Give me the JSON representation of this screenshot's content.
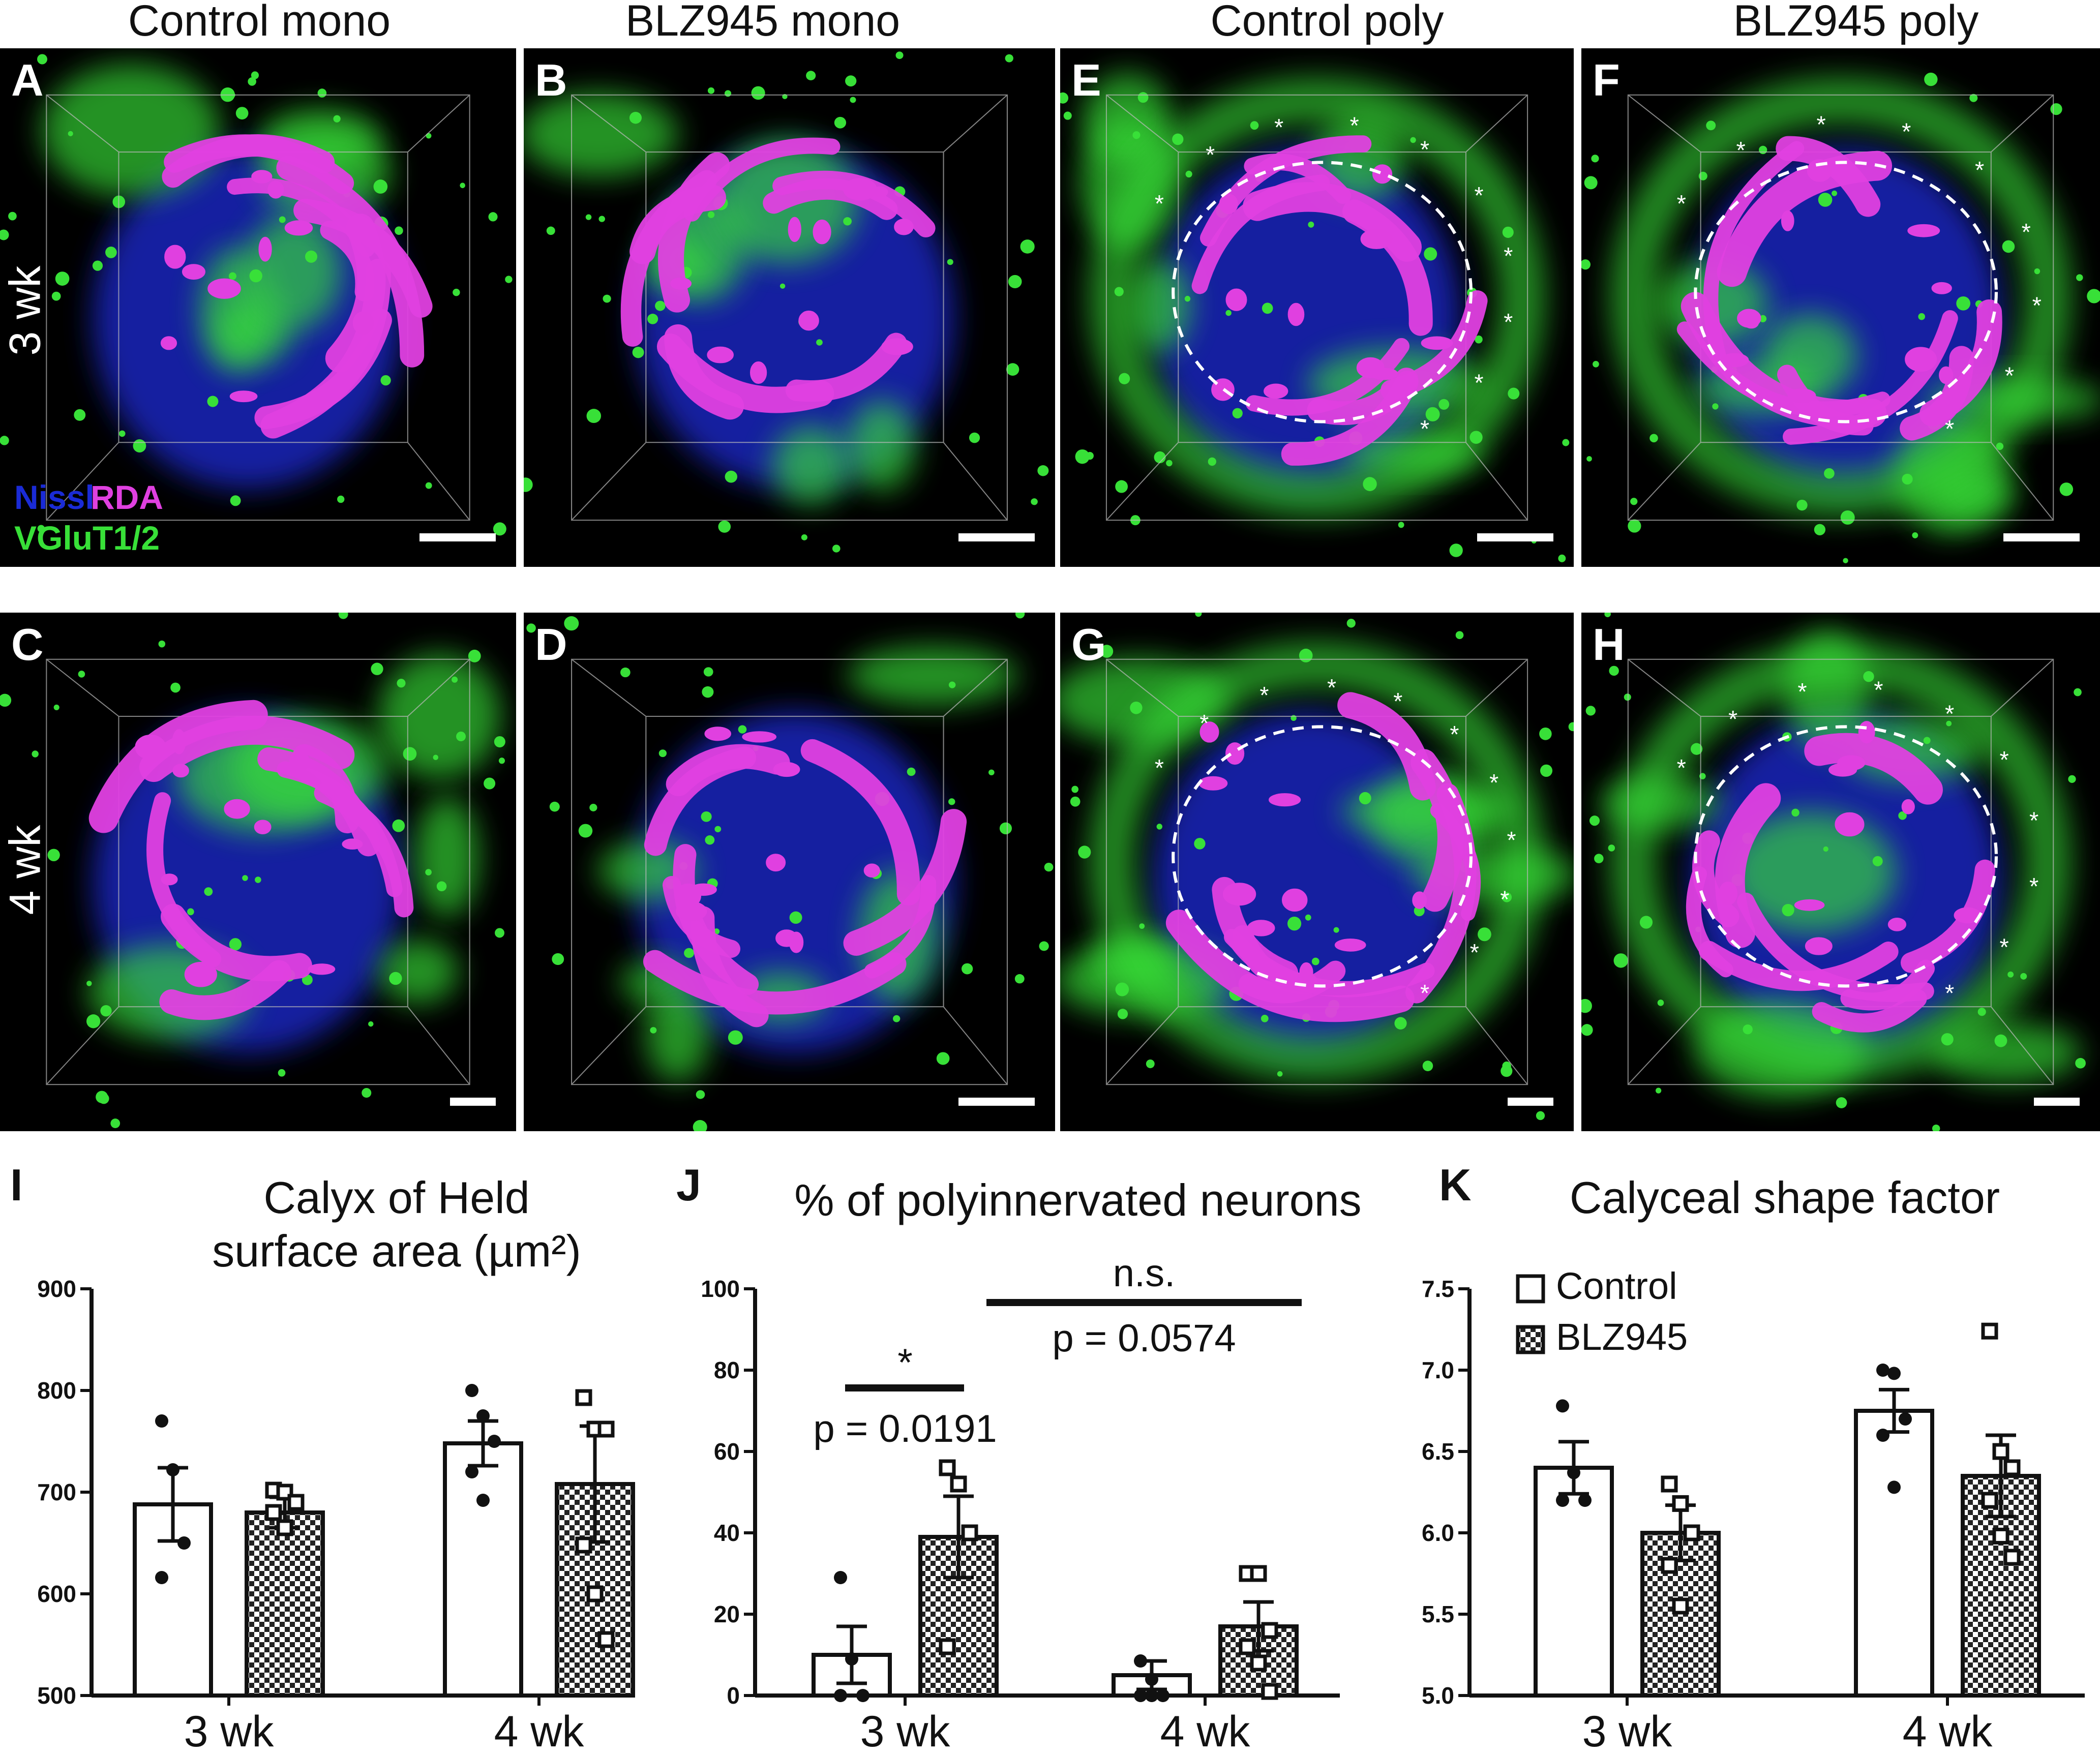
{
  "column_titles": [
    "Control mono",
    "BLZ945 mono",
    "Control poly",
    "BLZ945 poly"
  ],
  "row_labels": [
    "3 wk",
    "4 wk"
  ],
  "panels": [
    {
      "letter": "A",
      "asterisks": 0,
      "dashed": false
    },
    {
      "letter": "B",
      "asterisks": 0,
      "dashed": false
    },
    {
      "letter": "E",
      "asterisks": 10,
      "dashed": true
    },
    {
      "letter": "F",
      "asterisks": 9,
      "dashed": true
    },
    {
      "letter": "C",
      "asterisks": 0,
      "dashed": false
    },
    {
      "letter": "D",
      "asterisks": 0,
      "dashed": false
    },
    {
      "letter": "G",
      "asterisks": 11,
      "dashed": true
    },
    {
      "letter": "H",
      "asterisks": 10,
      "dashed": true
    }
  ],
  "stain_legend": {
    "nissl": "Nissl",
    "rda": "RDA",
    "vglut": "VGluT1/2"
  },
  "colors": {
    "nissl": "#1a2bd6",
    "rda": "#e040e0",
    "vglut": "#38e038",
    "bar_edge": "#000000"
  },
  "graph_legend": {
    "control": "Control",
    "blz": "BLZ945"
  },
  "chart_data": [
    {
      "letter": "I",
      "type": "bar",
      "title_line1": "Calyx of Held",
      "title_line2": "surface area (µm²)",
      "categories": [
        "3 wk",
        "4 wk"
      ],
      "ylim": [
        500,
        900
      ],
      "yticks": [
        500,
        600,
        700,
        800,
        900
      ],
      "series": [
        {
          "name": "Control",
          "values": [
            688,
            748
          ],
          "sem": [
            36,
            22
          ],
          "points": [
            [
              770,
              722,
              650,
              616
            ],
            [
              800,
              775,
              750,
              720,
              692
            ]
          ]
        },
        {
          "name": "BLZ945",
          "values": [
            680,
            708
          ],
          "sem": [
            15,
            57
          ],
          "points": [
            [
              702,
              700,
              690,
              680,
              665
            ],
            [
              793,
              762,
              762,
              648,
              600,
              555
            ]
          ]
        }
      ]
    },
    {
      "letter": "J",
      "type": "bar",
      "title": "% of polyinnervated neurons",
      "categories": [
        "3 wk",
        "4 wk"
      ],
      "ylim": [
        0,
        100
      ],
      "yticks": [
        0,
        20,
        40,
        60,
        80,
        100
      ],
      "series": [
        {
          "name": "Control",
          "values": [
            10,
            5
          ],
          "sem": [
            7,
            3.5
          ],
          "points": [
            [
              29,
              9,
              0,
              0
            ],
            [
              8.5,
              4,
              0,
              0,
              0
            ]
          ]
        },
        {
          "name": "BLZ945",
          "values": [
            39,
            17
          ],
          "sem": [
            10,
            6
          ],
          "points": [
            [
              56,
              52,
              40,
              12
            ],
            [
              30,
              30,
              16,
              12,
              8,
              1
            ]
          ]
        }
      ],
      "annotations": [
        {
          "text": "*",
          "p": "p = 0.0191"
        },
        {
          "text": "n.s.",
          "p": "p = 0.0574"
        }
      ]
    },
    {
      "letter": "K",
      "type": "bar",
      "title": "Calyceal shape factor",
      "categories": [
        "3 wk",
        "4 wk"
      ],
      "ylim": [
        5.0,
        7.5
      ],
      "yticks": [
        "5.0",
        "5.5",
        "6.0",
        "6.5",
        "7.0",
        "7.5"
      ],
      "series": [
        {
          "name": "Control",
          "values": [
            6.4,
            6.75
          ],
          "sem": [
            0.16,
            0.13
          ],
          "points": [
            [
              6.78,
              6.37,
              6.2,
              6.2
            ],
            [
              7.0,
              6.98,
              6.7,
              6.6,
              6.28
            ]
          ]
        },
        {
          "name": "BLZ945",
          "values": [
            6.0,
            6.35
          ],
          "sem": [
            0.17,
            0.25
          ],
          "points": [
            [
              6.3,
              6.18,
              6.0,
              5.8,
              5.55
            ],
            [
              7.24,
              6.5,
              6.4,
              6.2,
              5.98,
              5.85
            ]
          ]
        }
      ]
    }
  ]
}
